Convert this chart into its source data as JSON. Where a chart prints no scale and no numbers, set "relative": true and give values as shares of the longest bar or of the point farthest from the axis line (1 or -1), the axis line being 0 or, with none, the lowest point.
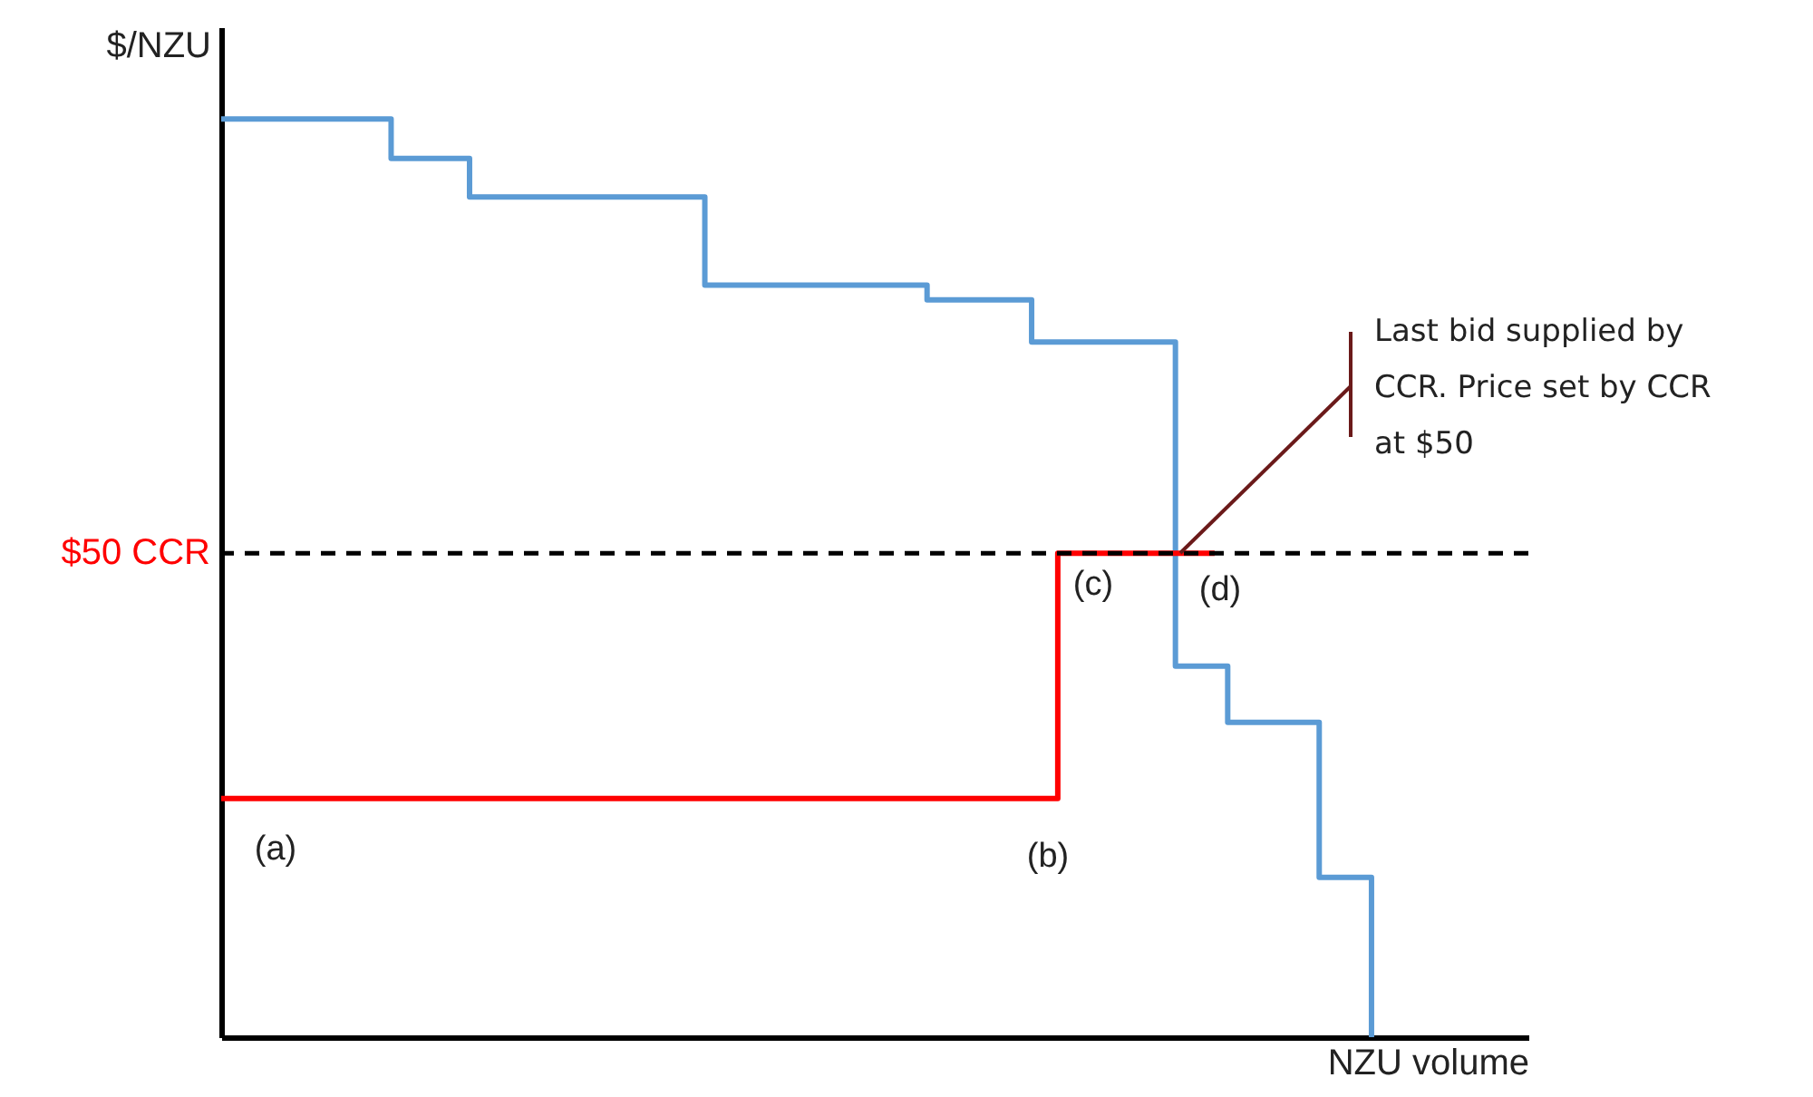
{
  "chart_data": {
    "type": "step",
    "relative": true,
    "xlabel": "NZU volume",
    "ylabel": "$/NZU",
    "line_style": "solid",
    "categories": [
      null,
      null,
      null,
      null,
      null,
      null,
      null,
      null,
      null,
      null,
      null,
      null,
      null,
      null,
      null,
      null,
      null,
      null,
      null,
      null,
      null,
      null,
      null,
      null,
      null,
      null,
      null,
      null,
      null,
      null,
      null,
      null,
      null,
      null,
      null,
      null,
      null,
      null,
      null,
      null,
      null,
      null,
      null,
      null,
      null,
      null,
      null,
      null,
      null,
      null,
      null,
      null,
      null,
      null,
      null,
      null,
      null,
      null,
      null,
      null,
      null,
      null,
      null,
      null,
      null,
      null,
      null,
      null,
      null,
      null,
      null,
      null,
      null,
      null,
      null,
      null,
      null,
      null,
      null,
      null,
      null,
      null,
      null,
      null,
      null,
      null,
      null,
      null,
      null,
      null,
      null,
      null,
      null,
      null,
      null,
      null,
      null,
      null,
      null,
      null,
      null
    ],
    "series": [
      {
        "color": "#5b9bd5",
        "values": [
          1,
          1,
          1,
          1,
          1,
          1,
          1,
          1,
          1,
          1,
          1,
          1,
          1,
          0.957,
          0.957,
          0.957,
          0.957,
          0.957,
          0.957,
          0.915,
          0.915,
          0.915,
          0.915,
          0.915,
          0.915,
          0.915,
          0.915,
          0.915,
          0.915,
          0.915,
          0.915,
          0.915,
          0.915,
          0.915,
          0.915,
          0.915,
          0.915,
          0.819,
          0.819,
          0.819,
          0.819,
          0.819,
          0.819,
          0.819,
          0.819,
          0.819,
          0.819,
          0.819,
          0.819,
          0.819,
          0.819,
          0.819,
          0.819,
          0.819,
          0.803,
          0.803,
          0.803,
          0.803,
          0.803,
          0.803,
          0.803,
          0.803,
          0.757,
          0.757,
          0.757,
          0.757,
          0.757,
          0.757,
          0.757,
          0.757,
          0.757,
          0.757,
          0.757,
          0.404,
          0.404,
          0.404,
          0.404,
          0.343,
          0.343,
          0.343,
          0.343,
          0.343,
          0.343,
          0.343,
          0.174,
          0.174,
          0.174,
          0.174,
          0,
          null,
          null,
          null,
          null,
          null,
          null,
          null,
          null,
          null,
          null,
          null,
          null
        ]
      },
      {
        "color": "#ff0000",
        "values": [
          0.26,
          0.26,
          0.26,
          0.26,
          0.26,
          0.26,
          0.26,
          0.26,
          0.26,
          0.26,
          0.26,
          0.26,
          0.26,
          0.26,
          0.26,
          0.26,
          0.26,
          0.26,
          0.26,
          0.26,
          0.26,
          0.26,
          0.26,
          0.26,
          0.26,
          0.26,
          0.26,
          0.26,
          0.26,
          0.26,
          0.26,
          0.26,
          0.26,
          0.26,
          0.26,
          0.26,
          0.26,
          0.26,
          0.26,
          0.26,
          0.26,
          0.26,
          0.26,
          0.26,
          0.26,
          0.26,
          0.26,
          0.26,
          0.26,
          0.26,
          0.26,
          0.26,
          0.26,
          0.26,
          0.26,
          0.26,
          0.26,
          0.26,
          0.26,
          0.26,
          0.26,
          0.26,
          0.26,
          0.26,
          0.527,
          0.527,
          0.527,
          0.527,
          0.527,
          0.527,
          0.527,
          0.527,
          0.527,
          0.527,
          0.527,
          0.527,
          0.527,
          null,
          null,
          null,
          null,
          null,
          null,
          null,
          null,
          null,
          null,
          null,
          null,
          null,
          null,
          null,
          null,
          null,
          null,
          null,
          null,
          null,
          null,
          null,
          null
        ]
      }
    ],
    "ref_lines": [
      {
        "axis": "y",
        "value": 0.527,
        "label": "$50 CCR",
        "color": "#000000",
        "line_style": "dashed"
      }
    ],
    "annotations": [
      "(a)",
      "(b)",
      "(c)",
      "(d)",
      "Last bid supplied by CCR. Price set by CCR at $50"
    ]
  }
}
